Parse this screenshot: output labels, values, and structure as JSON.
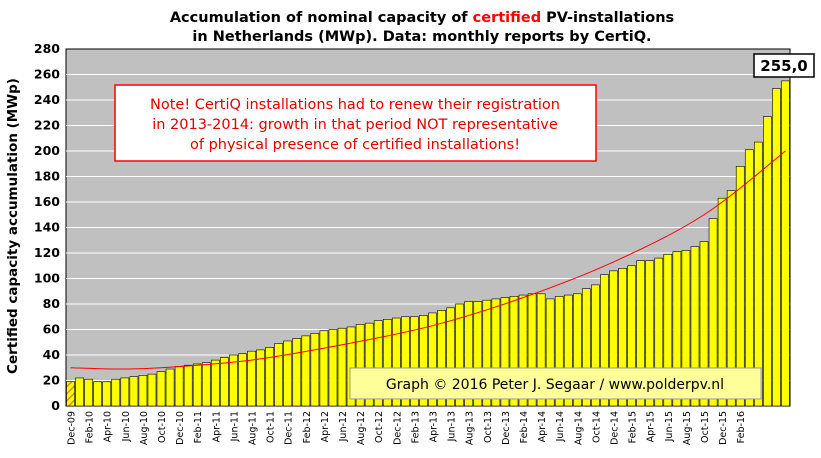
{
  "chart_data": {
    "type": "bar",
    "title_parts": [
      {
        "text": "Accumulation  of nominal  capacity  of ",
        "color": "#000000"
      },
      {
        "text": "certified",
        "color": "#ff0000"
      },
      {
        "text": "  PV-installations",
        "color": "#000000"
      }
    ],
    "title_line2": "in Netherlands (MWp). Data: monthly  reports by CertiQ.",
    "ylabel": "Certified capacity accumulation (MWp)",
    "ylim": [
      0,
      280
    ],
    "ytick_step": 20,
    "x_tick_labels": [
      "Dec-09",
      "Feb-10",
      "Apr-10",
      "Jun-10",
      "Aug-10",
      "Oct-10",
      "Dec-10",
      "Feb-11",
      "Apr-11",
      "Jun-11",
      "Aug-11",
      "Oct-11",
      "Dec-11",
      "Feb-12",
      "Apr-12",
      "Jun-12",
      "Aug-12",
      "Oct-12",
      "Dec-12",
      "Feb-13",
      "Apr-13",
      "Jun-13",
      "Aug-13",
      "Oct-13",
      "Dec-13",
      "Feb-14",
      "Apr-14",
      "Jun-14",
      "Aug-14",
      "Oct-14",
      "Dec-14",
      "Feb-15",
      "Apr-15",
      "Jun-15",
      "Aug-15",
      "Oct-15",
      "Dec-15",
      "Feb-16"
    ],
    "series": [
      {
        "values": [
          19,
          22,
          21,
          19,
          19,
          21,
          22,
          23,
          24,
          25,
          27,
          29,
          31,
          32,
          33,
          34,
          36,
          38,
          40,
          41,
          43,
          44,
          46,
          49,
          51,
          53,
          55,
          57,
          59,
          60,
          61,
          62,
          64,
          65,
          67,
          68,
          69,
          70,
          70,
          71,
          73,
          75,
          77,
          80,
          82,
          82,
          83,
          84,
          85,
          86,
          87,
          88,
          88,
          84,
          86,
          87,
          88,
          92,
          95,
          103,
          106,
          108,
          110,
          114,
          114,
          116,
          119,
          121,
          122,
          125,
          129,
          147,
          163,
          169,
          188,
          201,
          207,
          227,
          249,
          255
        ],
        "colors": {
          "bar": "#ffff00",
          "first_bar_hatch": "#d08000"
        }
      }
    ],
    "trendline": {
      "type": "polynomial",
      "color": "#ff0000",
      "points": [
        [
          0,
          30
        ],
        [
          5,
          29
        ],
        [
          10,
          30
        ],
        [
          20,
          36
        ],
        [
          30,
          48
        ],
        [
          40,
          63
        ],
        [
          50,
          85
        ],
        [
          60,
          113
        ],
        [
          70,
          150
        ],
        [
          79,
          200
        ]
      ]
    },
    "last_value_label": "255,0",
    "plot_background": "#c0c0c0",
    "grid": true,
    "note": {
      "lines": [
        "Note! CertiQ installations had to renew their registration",
        "in 2013-2014:  growth in that period NOT representative",
        "of physical presence of certified installations!"
      ],
      "color": "#e00000",
      "border_color": "#ff0000"
    },
    "credit": "Graph © 2016 Peter J. Segaar / www.polderpv.nl"
  }
}
